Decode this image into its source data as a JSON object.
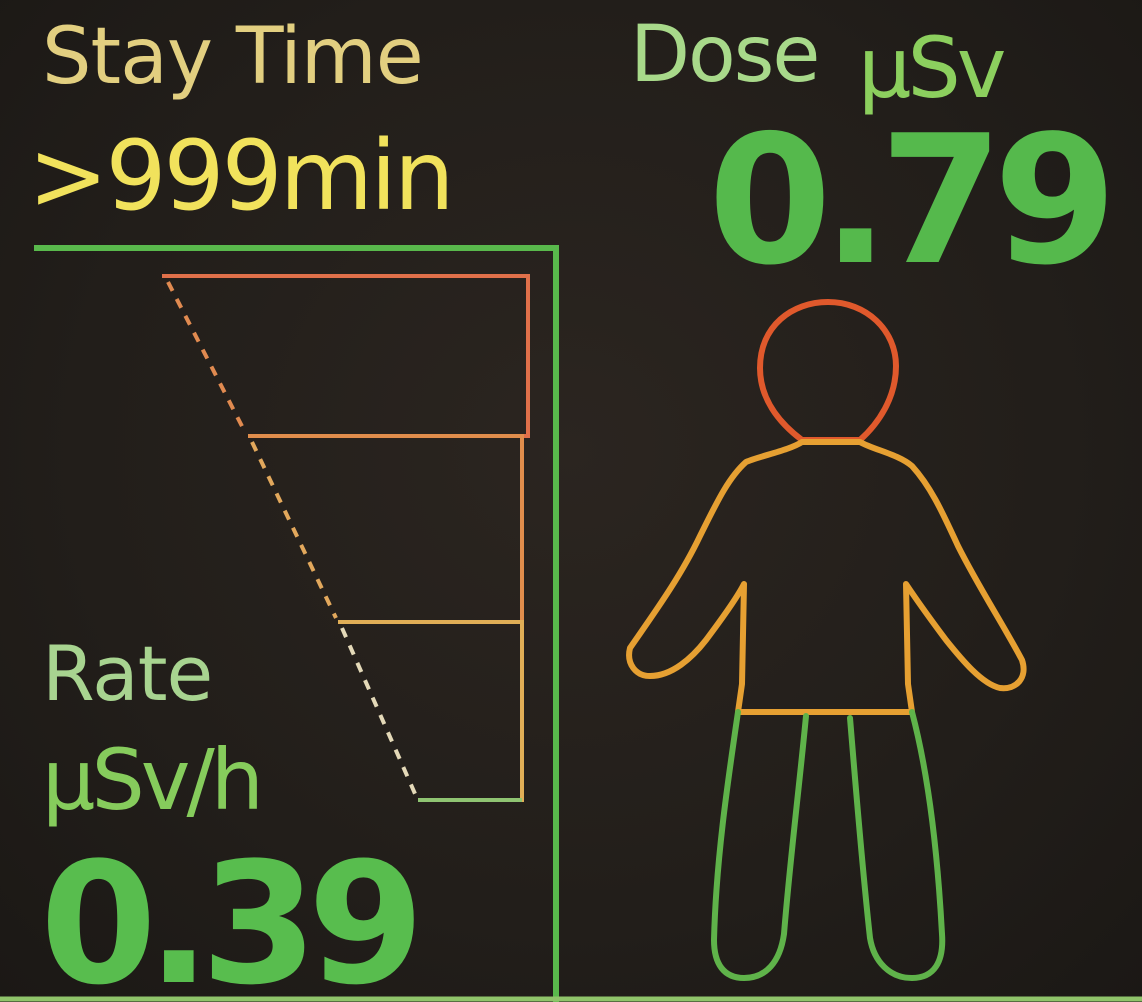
{
  "stay_time": {
    "label": "Stay Time",
    "value": ">999min"
  },
  "dose": {
    "label": "Dose",
    "unit": "μSv",
    "value": "0.79"
  },
  "rate": {
    "label": "Rate",
    "unit": "μSv/h",
    "value": "0.39"
  },
  "colors": {
    "background": "#231f1b",
    "frame_green": "#59b94c",
    "level_red": "#e0704a",
    "level_orange": "#e08d4c",
    "level_amber": "#e0ae56",
    "level_green": "#8fc472",
    "body_head": "#e0592c",
    "body_torso": "#e6a032",
    "body_legs": "#5fb34a",
    "stay_label": "#e2cf80",
    "stay_value": "#f1e25c"
  },
  "icons": {
    "body": "human-body-dose-icon",
    "rate_meter": "rate-level-meter"
  }
}
